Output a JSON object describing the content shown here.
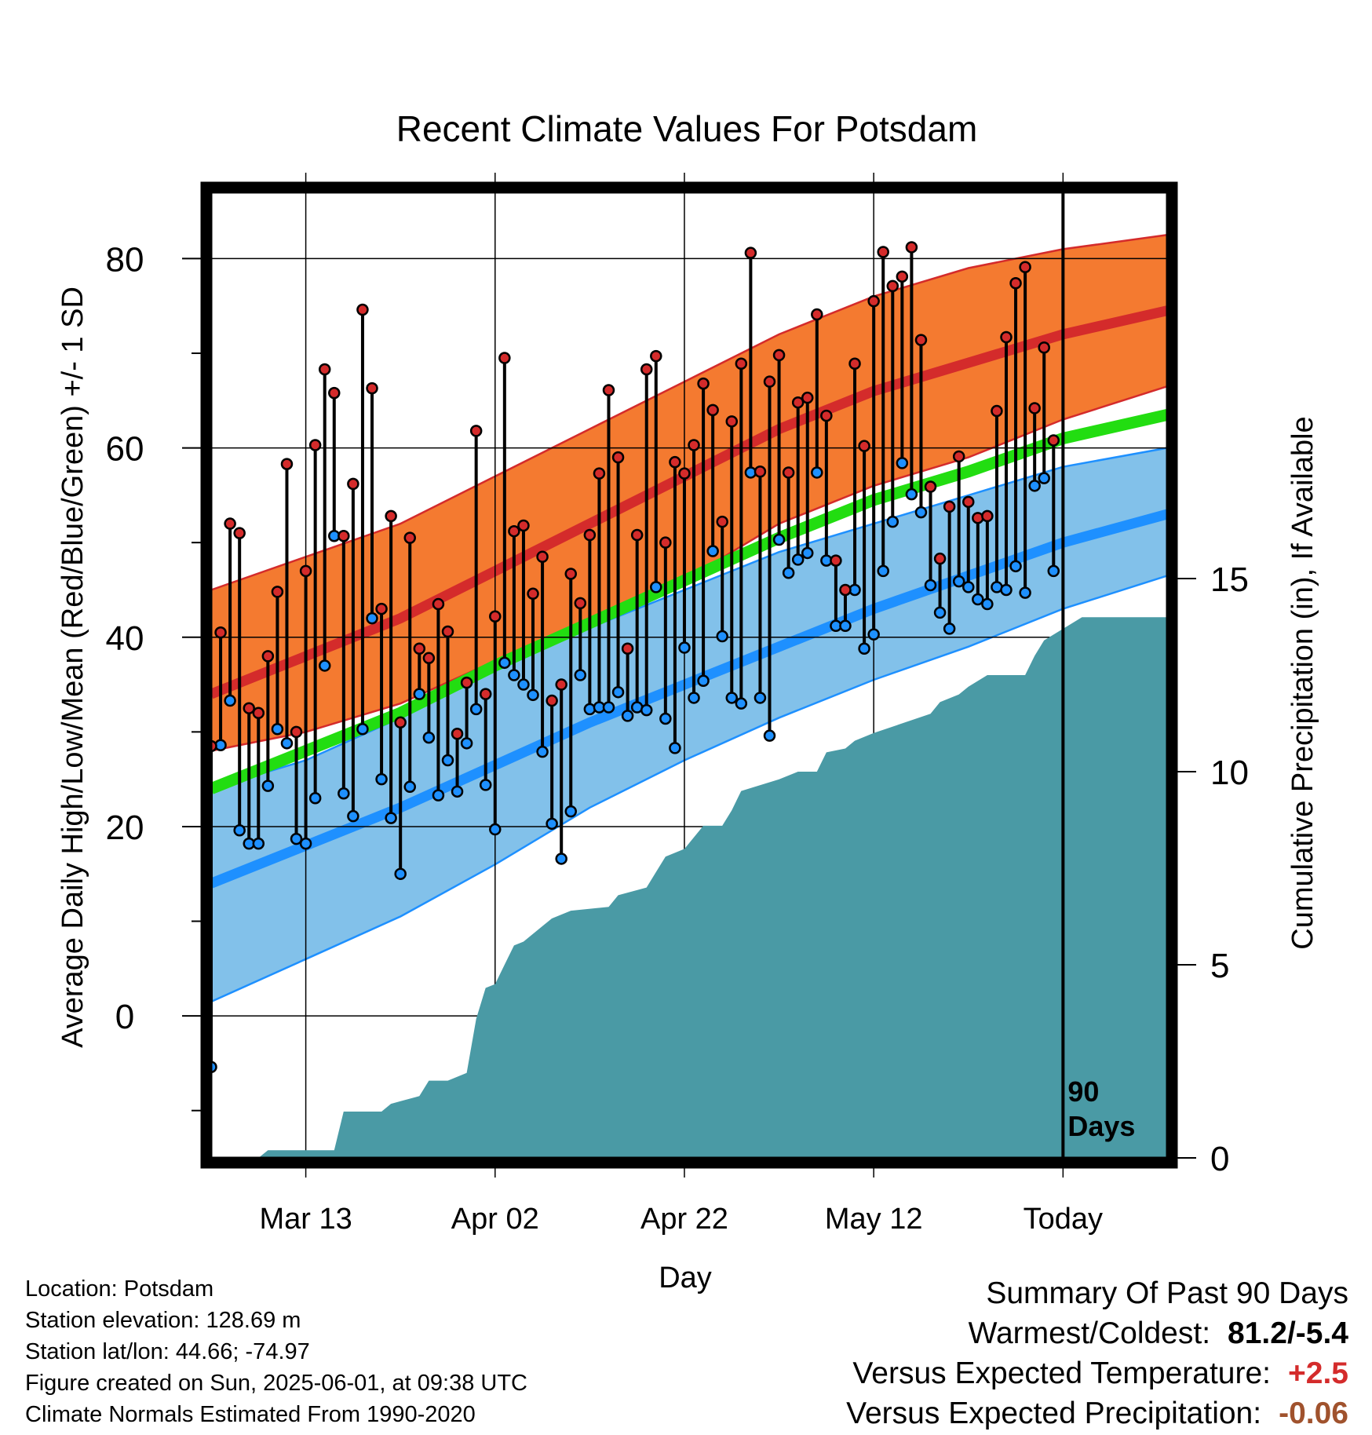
{
  "chart_data": {
    "type": "line",
    "title": "Recent Climate Values For Potsdam",
    "xlabel": "Day",
    "ylabel": "Average Daily High/Low/Mean (Red/Blue/Green) +/- 1 SD",
    "y2label": "Cumulative Precipitation (in), If Available",
    "xlim": [
      0,
      101
    ],
    "ylim": [
      -15,
      87
    ],
    "y2lim": [
      0,
      25
    ],
    "y_ticks": [
      0,
      20,
      40,
      60,
      80
    ],
    "y2_ticks": [
      0,
      5,
      10,
      15
    ],
    "x_ticks": [
      {
        "day": 10,
        "label": "Mar 13"
      },
      {
        "day": 30,
        "label": "Apr 02"
      },
      {
        "day": 50,
        "label": "Apr 22"
      },
      {
        "day": 70,
        "label": "May 12"
      },
      {
        "day": 90,
        "label": "Today"
      }
    ],
    "today_day": 90,
    "today_label": "90 Days",
    "grid": true,
    "normals": {
      "days": [
        0,
        10,
        20,
        30,
        40,
        50,
        60,
        70,
        80,
        90,
        101
      ],
      "high_mean": [
        34,
        38,
        42,
        47,
        52,
        57,
        62,
        66,
        69,
        72,
        74.5
      ],
      "high_upper": [
        45,
        48.5,
        52,
        57,
        62,
        67,
        72,
        76,
        79,
        81,
        82.5
      ],
      "high_lower": [
        28,
        30,
        33,
        37.5,
        41,
        46,
        52,
        56,
        59,
        63,
        66.5
      ],
      "low_mean": [
        14,
        18,
        22,
        26.5,
        31,
        35,
        39,
        43,
        46.5,
        50,
        53
      ],
      "low_upper": [
        24,
        27,
        31.5,
        36.5,
        41,
        45,
        49,
        52,
        55,
        58,
        60
      ],
      "low_lower": [
        1.5,
        6,
        10.5,
        16,
        22,
        27,
        31.5,
        35.5,
        39,
        43,
        46.5
      ],
      "mean": [
        24,
        28,
        32,
        37,
        41.5,
        46,
        50.5,
        54.5,
        57.5,
        61,
        63.5
      ]
    },
    "series": [
      {
        "name": "High",
        "color": "#d42b2b",
        "x": [
          0,
          1,
          2,
          3,
          4,
          5,
          6,
          7,
          8,
          9,
          10,
          11,
          12,
          13,
          14,
          15,
          16,
          17,
          18,
          19,
          20,
          21,
          22,
          23,
          24,
          25,
          26,
          27,
          28,
          29,
          30,
          31,
          32,
          33,
          34,
          35,
          36,
          37,
          38,
          39,
          40,
          41,
          42,
          43,
          44,
          45,
          46,
          47,
          48,
          49,
          50,
          51,
          52,
          53,
          54,
          55,
          56,
          57,
          58,
          59,
          60,
          61,
          62,
          63,
          64,
          65,
          66,
          67,
          68,
          69,
          70,
          71,
          72,
          73,
          74,
          75,
          76,
          77,
          78,
          79,
          80,
          81,
          82,
          83,
          84,
          85,
          86,
          87,
          88,
          89,
          90
        ],
        "values": [
          28.5,
          40.5,
          52,
          51,
          32.5,
          32,
          38,
          44.8,
          58.3,
          30,
          47,
          60.3,
          68.3,
          65.8,
          50.7,
          56.2,
          74.6,
          66.3,
          43,
          52.8,
          31,
          50.5,
          38.8,
          37.8,
          43.5,
          40.6,
          29.8,
          35.2,
          61.8,
          34,
          42.2,
          69.5,
          51.2,
          51.8,
          44.6,
          48.5,
          33.3,
          35,
          46.7,
          43.6,
          50.8,
          57.3,
          66.1,
          59,
          38.8,
          50.8,
          68.3,
          69.7,
          50,
          58.5,
          57.3,
          60.3,
          66.8,
          64,
          52.2,
          62.8,
          68.9,
          80.6,
          57.5,
          67,
          69.8,
          57.4,
          64.8,
          65.3,
          74.1,
          63.4,
          48.1,
          45,
          68.9,
          60.2,
          75.5,
          80.7,
          77.1,
          78.1,
          81.2,
          71.4,
          55.9,
          48.3,
          53.8,
          59.1,
          54.3,
          52.6,
          52.8,
          63.9,
          71.7,
          77.4,
          79.1,
          64.2,
          70.6,
          60.8,
          null
        ]
      },
      {
        "name": "Low",
        "color": "#1e90ff",
        "x": [
          0,
          1,
          2,
          3,
          4,
          5,
          6,
          7,
          8,
          9,
          10,
          11,
          12,
          13,
          14,
          15,
          16,
          17,
          18,
          19,
          20,
          21,
          22,
          23,
          24,
          25,
          26,
          27,
          28,
          29,
          30,
          31,
          32,
          33,
          34,
          35,
          36,
          37,
          38,
          39,
          40,
          41,
          42,
          43,
          44,
          45,
          46,
          47,
          48,
          49,
          50,
          51,
          52,
          53,
          54,
          55,
          56,
          57,
          58,
          59,
          60,
          61,
          62,
          63,
          64,
          65,
          66,
          67,
          68,
          69,
          70,
          71,
          72,
          73,
          74,
          75,
          76,
          77,
          78,
          79,
          80,
          81,
          82,
          83,
          84,
          85,
          86,
          87,
          88,
          89,
          90
        ],
        "values": [
          -5.4,
          28.6,
          33.3,
          19.6,
          18.2,
          18.2,
          24.3,
          30.3,
          28.8,
          18.7,
          18.2,
          23,
          37,
          50.7,
          23.5,
          21.1,
          30.3,
          42,
          25,
          20.9,
          15,
          24.2,
          34,
          29.4,
          23.3,
          27,
          23.7,
          28.8,
          32.4,
          24.4,
          19.7,
          37.3,
          36,
          35,
          33.9,
          27.9,
          20.3,
          16.6,
          21.6,
          36,
          32.4,
          32.6,
          32.6,
          34.2,
          31.7,
          32.6,
          32.3,
          45.3,
          31.4,
          28.3,
          38.9,
          33.6,
          35.4,
          49.1,
          40.1,
          33.6,
          33,
          57.4,
          33.6,
          29.6,
          50.3,
          46.8,
          48.2,
          48.9,
          57.4,
          48.1,
          41.2,
          41.2,
          45,
          38.8,
          40.3,
          47,
          52.2,
          58.4,
          55.1,
          53.2,
          45.5,
          42.6,
          40.9,
          45.9,
          45.3,
          44,
          43.5,
          45.3,
          45,
          47.5,
          44.7,
          56,
          56.8,
          47,
          null
        ]
      }
    ],
    "precip": {
      "x": [
        0,
        5,
        6,
        10,
        12,
        13,
        14,
        18,
        19,
        22,
        23,
        25,
        27,
        28,
        29,
        30,
        31,
        32,
        33,
        35,
        36,
        38,
        42,
        43,
        46,
        47,
        48,
        50,
        52,
        54,
        55,
        56,
        60,
        62,
        64,
        65,
        67,
        68,
        70,
        76,
        77,
        79,
        80,
        82,
        86,
        87,
        88,
        92,
        101
      ],
      "values": [
        0,
        0,
        0.2,
        0.2,
        0.2,
        0.2,
        1.2,
        1.2,
        1.4,
        1.6,
        2,
        2,
        2.2,
        3.6,
        4.4,
        4.5,
        5,
        5.5,
        5.6,
        6,
        6.2,
        6.4,
        6.5,
        6.8,
        7,
        7.4,
        7.8,
        8,
        8.6,
        8.6,
        9,
        9.5,
        9.8,
        10,
        10,
        10.5,
        10.6,
        10.8,
        11,
        11.5,
        11.8,
        12,
        12.2,
        12.5,
        12.5,
        13,
        13.4,
        14,
        14
      ]
    }
  },
  "info": {
    "location": "Location: Potsdam",
    "elevation": "Station elevation: 128.69 m",
    "latlon": "Station lat/lon: 44.66; -74.97",
    "created": "Figure created on Sun, 2025-06-01, at 09:38 UTC",
    "normals": "Climate Normals Estimated From 1990-2020"
  },
  "summary": {
    "title": "Summary Of Past 90 Days",
    "warmest_label": "Warmest/Coldest:",
    "warmest_value": "81.2/-5.4",
    "temp_label": "Versus Expected Temperature:",
    "temp_value": "+2.5",
    "precip_label": "Versus Expected Precipitation:",
    "precip_value": "-0.06"
  },
  "colors": {
    "high_band": "#f47a30",
    "high_line": "#d42b2b",
    "low_band": "#82c1ea",
    "low_line": "#1e90ff",
    "mean_line": "#22dd11",
    "precip_fill": "#4a9aa5",
    "frame": "#000000"
  }
}
